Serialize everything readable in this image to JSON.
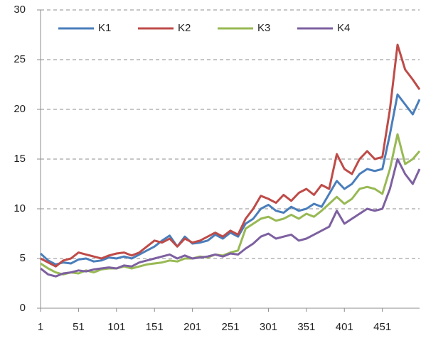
{
  "chart_data": {
    "type": "line",
    "x": [
      1,
      11,
      21,
      31,
      41,
      51,
      61,
      71,
      81,
      91,
      101,
      111,
      121,
      131,
      141,
      151,
      161,
      171,
      181,
      191,
      201,
      211,
      221,
      231,
      241,
      251,
      261,
      271,
      281,
      291,
      301,
      311,
      321,
      331,
      341,
      351,
      361,
      371,
      381,
      391,
      401,
      411,
      421,
      431,
      441,
      451,
      461,
      471,
      481,
      491,
      500
    ],
    "series": [
      {
        "name": "K1",
        "color": "#4a7ebb",
        "values": [
          5.5,
          4.8,
          4.4,
          4.6,
          4.5,
          4.9,
          5.0,
          4.7,
          4.8,
          5.1,
          5.0,
          5.2,
          5.0,
          5.4,
          5.8,
          6.2,
          6.8,
          7.3,
          6.2,
          7.2,
          6.5,
          6.6,
          6.8,
          7.4,
          7.0,
          7.6,
          7.2,
          8.5,
          9.0,
          10.0,
          10.4,
          9.8,
          9.6,
          10.2,
          9.8,
          10.0,
          10.5,
          10.2,
          11.5,
          12.8,
          12.0,
          12.5,
          13.5,
          14.0,
          13.8,
          14.0,
          17.5,
          21.5,
          20.5,
          19.5,
          21.0
        ]
      },
      {
        "name": "K2",
        "color": "#be4b48",
        "values": [
          5.0,
          4.6,
          4.2,
          4.8,
          5.0,
          5.6,
          5.4,
          5.2,
          5.0,
          5.3,
          5.5,
          5.6,
          5.3,
          5.6,
          6.2,
          6.8,
          6.6,
          7.0,
          6.2,
          7.0,
          6.6,
          6.8,
          7.2,
          7.6,
          7.2,
          7.8,
          7.4,
          9.0,
          10.0,
          11.3,
          11.0,
          10.6,
          11.4,
          10.8,
          11.6,
          12.0,
          11.4,
          12.4,
          12.0,
          15.5,
          14.0,
          13.5,
          15.0,
          15.8,
          15.0,
          15.2,
          20.0,
          26.5,
          24.0,
          23.0,
          22.0
        ]
      },
      {
        "name": "K3",
        "color": "#98b954",
        "values": [
          4.5,
          4.0,
          3.6,
          3.4,
          3.6,
          3.5,
          3.8,
          3.6,
          3.9,
          4.0,
          4.0,
          4.2,
          4.0,
          4.2,
          4.4,
          4.5,
          4.6,
          4.8,
          4.7,
          5.0,
          5.0,
          5.2,
          5.1,
          5.4,
          5.3,
          5.6,
          5.8,
          8.0,
          8.5,
          9.0,
          9.2,
          8.8,
          9.0,
          9.4,
          9.0,
          9.5,
          9.2,
          9.8,
          10.5,
          11.2,
          10.5,
          11.0,
          12.0,
          12.2,
          12.0,
          11.5,
          14.0,
          17.5,
          14.5,
          15.0,
          15.8
        ]
      },
      {
        "name": "K4",
        "color": "#7d60a0",
        "values": [
          4.0,
          3.4,
          3.2,
          3.5,
          3.6,
          3.8,
          3.7,
          3.9,
          4.0,
          4.1,
          4.0,
          4.3,
          4.2,
          4.6,
          4.8,
          5.0,
          5.2,
          5.4,
          5.0,
          5.3,
          5.0,
          5.1,
          5.2,
          5.4,
          5.2,
          5.5,
          5.4,
          6.0,
          6.5,
          7.2,
          7.5,
          7.0,
          7.2,
          7.4,
          6.8,
          7.0,
          7.4,
          7.8,
          8.2,
          9.8,
          8.5,
          9.0,
          9.5,
          10.0,
          9.8,
          10.0,
          12.0,
          15.0,
          13.5,
          12.5,
          14.0
        ]
      }
    ],
    "xlim": [
      1,
      500
    ],
    "xticks": [
      1,
      51,
      101,
      151,
      201,
      251,
      301,
      351,
      401,
      451
    ],
    "ylim": [
      0,
      30
    ],
    "yticks": [
      0,
      5,
      10,
      15,
      20,
      25,
      30
    ],
    "grid": true,
    "legend": "top-left"
  }
}
